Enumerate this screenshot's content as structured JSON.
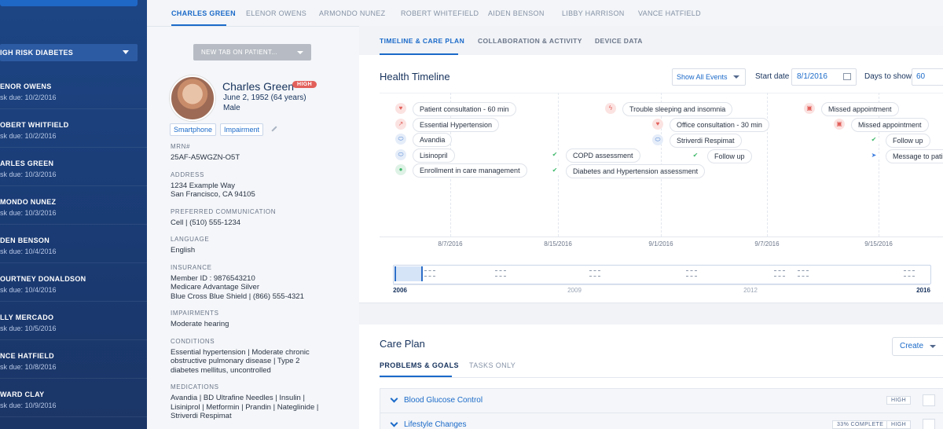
{
  "sidebar": {
    "filter": "IGH RISK DIABETES",
    "patients": [
      {
        "name": "ENOR OWENS",
        "due": "sk due: 10/2/2016"
      },
      {
        "name": "OBERT WHITFIELD",
        "due": "sk due: 10/2/2016"
      },
      {
        "name": "ARLES GREEN",
        "due": "sk due: 10/3/2016"
      },
      {
        "name": "MONDO NUNEZ",
        "due": "sk due: 10/3/2016"
      },
      {
        "name": "DEN BENSON",
        "due": "sk due: 10/4/2016"
      },
      {
        "name": "OURTNEY DONALDSON",
        "due": "sk due: 10/4/2016"
      },
      {
        "name": "LLY MERCADO",
        "due": "sk due: 10/5/2016"
      },
      {
        "name": "NCE HATFIELD",
        "due": "sk due: 10/8/2016"
      },
      {
        "name": "WARD CLAY",
        "due": "sk due: 10/9/2016"
      }
    ]
  },
  "patient_tabs": [
    "CHARLES GREEN",
    "ELENOR OWENS",
    "ARMONDO NUNEZ",
    "ROBERT WHITEFIELD",
    "AIDEN BENSON",
    "LIBBY HARRISON",
    "VANCE HATFIELD"
  ],
  "patient": {
    "new_tab_button": "NEW TAB ON PATIENT...",
    "name": "Charles Green",
    "risk": "HIGH",
    "dob": "June 2, 1952 (64 years)",
    "sex": "Male",
    "tags": [
      "Smartphone",
      "Impairment"
    ],
    "fields": [
      {
        "label": "MRN#",
        "lines": [
          "25AF-A5WGZN-O5T"
        ]
      },
      {
        "label": "ADDRESS",
        "lines": [
          "1234 Example Way",
          "San Francisco, CA 94105"
        ]
      },
      {
        "label": "PREFERRED COMMUNICATION",
        "lines": [
          "Cell | (510) 555-1234"
        ]
      },
      {
        "label": "LANGUAGE",
        "lines": [
          "English"
        ]
      },
      {
        "label": "INSURANCE",
        "lines": [
          "Member ID : 9876543210",
          "Medicare Advantage Silver",
          "Blue Cross Blue Shield | (866) 555-4321"
        ]
      },
      {
        "label": "IMPAIRMENTS",
        "lines": [
          "Moderate hearing"
        ]
      },
      {
        "label": "CONDITIONS",
        "lines": [
          "Essential hypertension | Moderate chronic",
          "obstructive pulmonary disease | Type 2",
          "diabetes mellitus, uncontrolled"
        ]
      },
      {
        "label": "MEDICATIONS",
        "lines": [
          "Avandia | BD Ultrafine Needles | Insulin |",
          "Lisiniprol | Metformin | Prandin | Nateglinide |",
          "Striverdi Respimat"
        ]
      }
    ]
  },
  "view_tabs": [
    "TIMELINE & CARE PLAN",
    "COLLABORATION & ACTIVITY",
    "DEVICE DATA"
  ],
  "timeline": {
    "title": "Health Timeline",
    "filter": "Show All Events",
    "start_label": "Start date",
    "start_value": "8/1/2016",
    "days_label": "Days to show",
    "days_value": "60",
    "events": [
      "Patient consultation - 60 min",
      "Essential Hypertension",
      "Avandia",
      "Lisinopril",
      "Enrollment in care management",
      "COPD assessment",
      "Diabetes and Hypertension assessment",
      "Trouble sleeping and insomnia",
      "Office consultation - 30 min",
      "Striverdi Respimat",
      "Follow up",
      "Missed appointment",
      "Missed appointment",
      "Follow up",
      "Message to pati"
    ],
    "dates": [
      "8/7/2016",
      "8/15/2016",
      "9/1/2016",
      "9/7/2016",
      "9/15/2016"
    ],
    "years": [
      "2006",
      "2009",
      "2012",
      "2016"
    ]
  },
  "care_plan": {
    "title": "Care Plan",
    "create": "Create",
    "tabs": [
      "PROBLEMS & GOALS",
      "TASKS ONLY"
    ],
    "problems": [
      {
        "name": "Blood Glucose Control",
        "priority": "HIGH"
      },
      {
        "name": "Lifestyle Changes",
        "progress": "33% COMPLETE",
        "priority": "HIGH"
      }
    ]
  }
}
